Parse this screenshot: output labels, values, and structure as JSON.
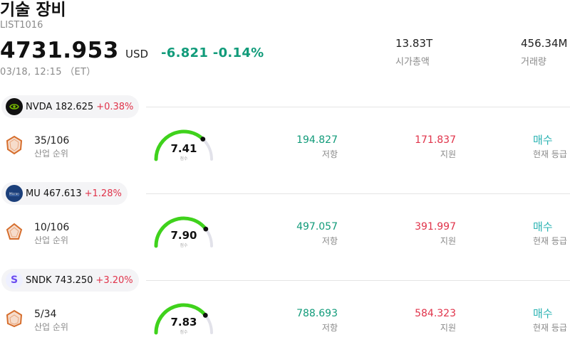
{
  "header": {
    "title": "기술 장비",
    "code": "LIST1016",
    "price": "4731.953",
    "currency": "USD",
    "change": "-6.821",
    "change_pct": "-0.14%",
    "timestamp": "03/18, 12:15 （ET）",
    "market_cap_value": "13.83T",
    "market_cap_label": "시가총액",
    "volume_value": "456.34M",
    "volume_label": "거래량"
  },
  "colors": {
    "up": "#e0334a",
    "down": "#119b7a",
    "gauge": "#3fd21c",
    "gauge_track": "#e2e2ea",
    "rating": "#2bb3b3"
  },
  "stocks": [
    {
      "ticker": "NVDA",
      "price": "182.625",
      "change_pct": "+0.38%",
      "logo": "nvidia-logo",
      "rank": "35/106",
      "rank_label": "산업 순위",
      "score": 7.41,
      "score_label": "점수",
      "resistance": "194.827",
      "resistance_label": "저항",
      "support": "171.837",
      "support_label": "지원",
      "rating": "매수",
      "rating_label": "현재 등급"
    },
    {
      "ticker": "MU",
      "price": "467.613",
      "change_pct": "+1.28%",
      "logo": "micron-logo",
      "rank": "10/106",
      "rank_label": "산업 순위",
      "score": 7.9,
      "score_label": "점수",
      "resistance": "497.057",
      "resistance_label": "저항",
      "support": "391.997",
      "support_label": "지원",
      "rating": "매수",
      "rating_label": "현재 등급"
    },
    {
      "ticker": "SNDK",
      "price": "743.250",
      "change_pct": "+3.20%",
      "logo": "sandisk-logo",
      "logo_letter": "S",
      "rank": "5/34",
      "rank_label": "산업 순위",
      "score": 7.83,
      "score_label": "점수",
      "resistance": "788.693",
      "resistance_label": "저항",
      "support": "584.323",
      "support_label": "지원",
      "rating": "매수",
      "rating_label": "현재 등급"
    }
  ]
}
